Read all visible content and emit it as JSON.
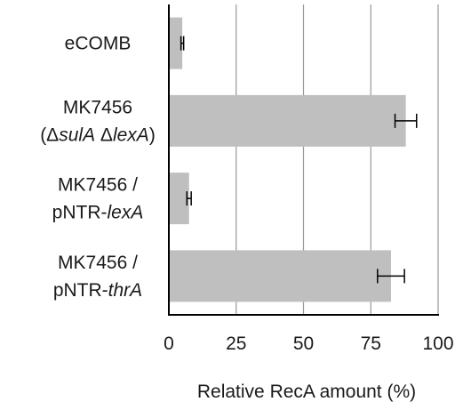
{
  "chart_data": {
    "type": "bar",
    "orientation": "horizontal",
    "categories": [
      {
        "lines": [
          [
            {
              "t": "eCOMB",
              "i": false
            }
          ]
        ]
      },
      {
        "lines": [
          [
            {
              "t": "MK7456",
              "i": false
            }
          ],
          [
            {
              "t": "(Δ",
              "i": false
            },
            {
              "t": "sulA",
              "i": true
            },
            {
              "t": " Δ",
              "i": false
            },
            {
              "t": "lexA",
              "i": true
            },
            {
              "t": ")",
              "i": false
            }
          ]
        ]
      },
      {
        "lines": [
          [
            {
              "t": "MK7456 /",
              "i": false
            }
          ],
          [
            {
              "t": "pNTR-",
              "i": false
            },
            {
              "t": "lexA",
              "i": true
            }
          ]
        ]
      },
      {
        "lines": [
          [
            {
              "t": "MK7456 /",
              "i": false
            }
          ],
          [
            {
              "t": "pNTR-",
              "i": false
            },
            {
              "t": "thrA",
              "i": true
            }
          ]
        ]
      }
    ],
    "values": [
      5,
      88,
      7.5,
      82.5
    ],
    "errors": [
      0.5,
      4,
      0.8,
      5
    ],
    "xlim": [
      0,
      100
    ],
    "xticks": [
      "0",
      "25",
      "50",
      "75",
      "100"
    ],
    "xlabel": "Relative RecA amount (%)",
    "grid": "vertical",
    "bar_color": "#bfbfbf",
    "grid_color": "#999999",
    "axis_color": "#000000"
  }
}
